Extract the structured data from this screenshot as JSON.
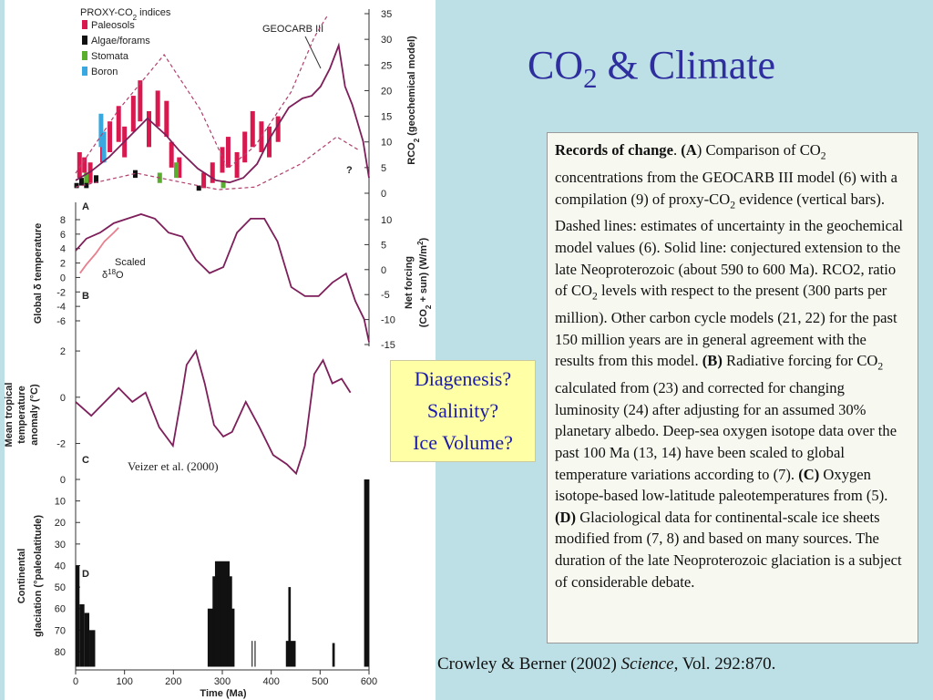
{
  "title": [
    {
      "text": "CO"
    },
    {
      "text": "2",
      "script": "sub"
    },
    {
      "text": " & Climate"
    }
  ],
  "callout": [
    "Diagenesis?",
    "Salinity?",
    "Ice Volume?"
  ],
  "caption": [
    {
      "text": "Records of change",
      "bold": true
    },
    {
      "text": ". "
    },
    {
      "text": "(A",
      "bold": true
    },
    {
      "text": ") Comparison of CO"
    },
    {
      "text": "2",
      "script": "sub"
    },
    {
      "text": " concentrations from the GEOCARB III model (6) with a compilation (9) of proxy-CO"
    },
    {
      "text": "2",
      "script": "sub"
    },
    {
      "text": " evidence (vertical bars). Dashed lines: estimates of uncertainty in the geochemical model values (6). Solid line: conjectured extension to the late Neoproterozoic (about 590 to 600 Ma). RCO2, ratio of CO"
    },
    {
      "text": "2",
      "script": "sub"
    },
    {
      "text": " levels with respect to the present (300 parts per million). Other carbon cycle models (21, 22) for the past 150 million years are in general agreement with the results from this model. "
    },
    {
      "text": "(B)",
      "bold": true
    },
    {
      "text": " Radiative forcing for CO"
    },
    {
      "text": "2",
      "script": "sub"
    },
    {
      "text": " calculated from (23) and corrected for changing luminosity (24) after adjusting for an assumed 30% planetary albedo. Deep-sea oxygen isotope data over the past 100 Ma (13, 14) have been scaled to global temperature variations according to (7). "
    },
    {
      "text": "(C)",
      "bold": true
    },
    {
      "text": " Oxygen isotope-based low-latitude paleotemperatures from (5).  "
    },
    {
      "text": "(D)",
      "bold": true
    },
    {
      "text": " Glaciological data for continental-scale ice sheets modified from (7, 8) and based on many sources. The duration of the late Neoproterozoic glaciation is a subject of considerable debate."
    }
  ],
  "citation": [
    {
      "text": "Crowley & Berner (2002) "
    },
    {
      "text": "Science",
      "italic": true
    },
    {
      "text": ", Vol. 292:870."
    }
  ],
  "chart_data": [
    {
      "type": "line",
      "label": "A",
      "legend_title": [
        {
          "text": "PROXY-CO"
        },
        {
          "text": "2",
          "script": "sub"
        },
        {
          "text": " indices"
        }
      ],
      "y2label": [
        [
          {
            "text": "RCO"
          },
          {
            "text": "2",
            "script": "sub"
          },
          {
            "text": " (geochemical model)"
          }
        ]
      ],
      "xlim": [
        0,
        600
      ],
      "y2lim": [
        0,
        35
      ],
      "y2ticks": [
        0,
        5,
        10,
        15,
        20,
        25,
        30,
        35
      ],
      "annotation": "?",
      "series": [
        {
          "name": "GEOCARB III",
          "color": "#7d1f5a",
          "dashed": false,
          "axis": "y2",
          "x": [
            0,
            32,
            69,
            119,
            147,
            184,
            212,
            250,
            287,
            315,
            343,
            371,
            399,
            436,
            464,
            483,
            501,
            520,
            538,
            551,
            566,
            588,
            600
          ],
          "values": [
            2.5,
            4.3,
            7.1,
            11.9,
            14.6,
            11.4,
            8.3,
            4.8,
            2.5,
            2.1,
            3.0,
            5.7,
            11.0,
            16.7,
            18.5,
            19.0,
            20.8,
            24.3,
            28.8,
            20.8,
            17.2,
            10.1,
            3.0
          ]
        },
        {
          "color": "#b0406e",
          "dashed": true,
          "axis": "y2",
          "x": [
            0,
            88,
            181,
            255,
            311,
            367,
            441,
            488,
            516
          ],
          "values": [
            3.9,
            16.3,
            27,
            16.3,
            4.8,
            9.2,
            19.8,
            30.4,
            34.8
          ]
        },
        {
          "color": "#b0406e",
          "dashed": true,
          "axis": "y2",
          "x": [
            0,
            125,
            218,
            292,
            367,
            460,
            534,
            581
          ],
          "values": [
            1.2,
            3.9,
            2.1,
            0.7,
            1.2,
            5.7,
            11.0,
            8.3
          ]
        }
      ],
      "proxies": [
        {
          "name": "Paleosols",
          "color": "#d8194f",
          "x": [
            8,
            18,
            30,
            55,
            70,
            88,
            100,
            118,
            132,
            150,
            168,
            186,
            196,
            212,
            262,
            280,
            300,
            312,
            330,
            346,
            362,
            380,
            396,
            414
          ],
          "low": [
            3,
            4,
            2,
            6,
            8,
            10,
            7,
            12,
            14,
            9,
            13,
            11,
            5,
            3,
            1,
            2,
            4,
            5,
            3,
            6,
            9,
            8,
            7,
            10
          ],
          "high": [
            8,
            7,
            6,
            11,
            14,
            17,
            13,
            19,
            22,
            16,
            20,
            18,
            10,
            7,
            4,
            6,
            9,
            11,
            8,
            12,
            16,
            14,
            13,
            15
          ]
        },
        {
          "name": "Algae/forams",
          "color": "#111111",
          "x": [
            2,
            12,
            22,
            42,
            122,
            252
          ],
          "low": [
            1,
            1.5,
            1,
            2,
            3,
            0.5
          ],
          "high": [
            2,
            3,
            2.5,
            3.5,
            4.5,
            1.5
          ]
        },
        {
          "name": "Stomata",
          "color": "#5aae2e",
          "x": [
            22,
            172,
            206,
            302
          ],
          "low": [
            2,
            2,
            3,
            1
          ],
          "high": [
            4,
            4,
            6,
            2.5
          ]
        },
        {
          "name": "Boron",
          "color": "#3aa8e0",
          "x": [
            52,
            58
          ],
          "low": [
            9,
            6
          ],
          "high": [
            15.5,
            12
          ]
        }
      ]
    },
    {
      "type": "line",
      "label": "B",
      "ylabel": [
        [
          {
            "text": "Global δ temperature"
          }
        ]
      ],
      "y2label": [
        [
          {
            "text": "Net forcing"
          }
        ],
        [
          {
            "text": "(CO"
          },
          {
            "text": "2",
            "script": "sub"
          },
          {
            "text": " + sun) (W/m"
          },
          {
            "text": "2",
            "script": "sup"
          },
          {
            "text": ")"
          }
        ]
      ],
      "annotation": [
        [
          {
            "text": "Scaled"
          }
        ],
        [
          {
            "text": "δ"
          },
          {
            "text": "18",
            "script": "sup"
          },
          {
            "text": "O"
          }
        ]
      ],
      "xlim": [
        0,
        600
      ],
      "ylim": [
        -6,
        8
      ],
      "yticks": [
        -6,
        -4,
        -2,
        0,
        2,
        4,
        6,
        8
      ],
      "y2lim": [
        -15,
        10
      ],
      "y2ticks": [
        -15,
        -10,
        -5,
        0,
        5,
        10
      ],
      "series": [
        {
          "color": "#7d1f5a",
          "axis": "y2",
          "x": [
            0,
            22,
            50,
            78,
            106,
            134,
            162,
            190,
            218,
            246,
            274,
            302,
            330,
            358,
            386,
            413,
            441,
            469,
            497,
            525,
            553,
            572,
            590,
            600
          ],
          "values": [
            3.8,
            6.2,
            7.4,
            9.3,
            10.2,
            11.1,
            10.2,
            7.4,
            6.6,
            2.0,
            -0.7,
            0.5,
            7.4,
            10.2,
            10.2,
            5.6,
            -3.5,
            -5.3,
            -5.3,
            -2.6,
            -0.8,
            -6.3,
            -9.9,
            -14.5
          ]
        },
        {
          "color": "#e77f8e",
          "axis": "y",
          "x": [
            9,
            22,
            41,
            59,
            78,
            88
          ],
          "values": [
            0.6,
            1.8,
            3.3,
            5.0,
            6.2,
            6.9
          ]
        }
      ]
    },
    {
      "type": "line",
      "label": "C",
      "ylabel": [
        [
          {
            "text": "Mean tropical"
          }
        ],
        [
          {
            "text": "temperature"
          }
        ],
        [
          {
            "text": "anomaly (°C)"
          }
        ]
      ],
      "source": "Veizer et al. (2000)",
      "xlim": [
        0,
        600
      ],
      "ylim": [
        -3.5,
        2.5
      ],
      "yticks": [
        -2,
        0,
        2
      ],
      "series": [
        {
          "color": "#7d1f5a",
          "axis": "y",
          "x": [
            0,
            32,
            60,
            88,
            116,
            143,
            171,
            199,
            218,
            227,
            246,
            264,
            283,
            302,
            320,
            348,
            376,
            404,
            432,
            451,
            469,
            488,
            506,
            525,
            544,
            562
          ],
          "values": [
            -0.2,
            -0.8,
            -0.2,
            0.4,
            -0.2,
            0.2,
            -1.3,
            -2.1,
            0.2,
            1.4,
            2.0,
            0.6,
            -1.2,
            -1.7,
            -1.5,
            -0.2,
            -1.3,
            -2.5,
            -2.9,
            -3.3,
            -2.1,
            1.0,
            1.6,
            0.6,
            0.8,
            0.2
          ]
        }
      ]
    },
    {
      "type": "bar",
      "label": "D",
      "ylabel": [
        [
          {
            "text": "Continental"
          }
        ],
        [
          {
            "text": "glaciation (°paleolatitude)"
          }
        ]
      ],
      "xlabel": "Time (Ma)",
      "xlim": [
        0,
        600
      ],
      "xticks": [
        0,
        100,
        200,
        300,
        400,
        500,
        600
      ],
      "ylim": [
        0,
        87
      ],
      "y_inverted": true,
      "yticks": [
        0,
        10,
        20,
        30,
        40,
        50,
        60,
        70,
        80
      ],
      "color": "#111111",
      "x0": [
        0,
        8,
        18,
        28,
        270,
        280,
        285,
        295,
        300,
        310,
        315,
        360,
        366,
        430,
        435,
        525,
        590
      ],
      "x1": [
        8,
        18,
        28,
        40,
        285,
        295,
        300,
        310,
        315,
        320,
        325,
        362,
        368,
        450,
        440,
        530,
        600
      ],
      "values": [
        40,
        58,
        62,
        70,
        60,
        45,
        38,
        42,
        38,
        45,
        60,
        75,
        75,
        75,
        50,
        76,
        0
      ]
    }
  ]
}
